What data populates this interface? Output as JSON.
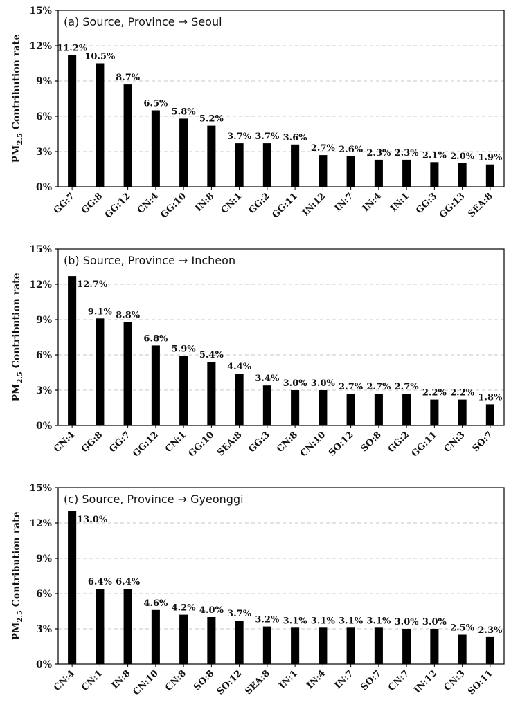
{
  "chart_data": [
    {
      "type": "bar",
      "title": "(a) Source, Province → Seoul",
      "ylabel": "PM₂.₅ Contribution rate",
      "ylabel_main": "PM",
      "ylabel_sub": "2.5",
      "ylabel_rest": " Contribution rate",
      "ylim": [
        0,
        15
      ],
      "yticks": [
        0,
        3,
        6,
        9,
        12,
        15
      ],
      "ytick_labels": [
        "0%",
        "3%",
        "6%",
        "9%",
        "12%",
        "15%"
      ],
      "grid": "horizontal dashed",
      "categories": [
        "GG:7",
        "GG:8",
        "GG:12",
        "CN:4",
        "GG:10",
        "IN:8",
        "CN:1",
        "GG:2",
        "GG:11",
        "IN:12",
        "IN:7",
        "IN:4",
        "IN:1",
        "GG:3",
        "GG:13",
        "SEA:8"
      ],
      "values": [
        11.2,
        10.5,
        8.7,
        6.5,
        5.8,
        5.2,
        3.7,
        3.7,
        3.6,
        2.7,
        2.6,
        2.3,
        2.3,
        2.1,
        2.0,
        1.9
      ],
      "data_labels": [
        "11.2%",
        "10.5%",
        "8.7%",
        "6.5%",
        "5.8%",
        "5.2%",
        "3.7%",
        "3.7%",
        "3.6%",
        "2.7%",
        "2.6%",
        "2.3%",
        "2.3%",
        "2.1%",
        "2.0%",
        "1.9%"
      ],
      "bar_color": "#000000"
    },
    {
      "type": "bar",
      "title": "(b) Source, Province → Incheon",
      "ylabel": "PM₂.₅ Contribution rate",
      "ylabel_main": "PM",
      "ylabel_sub": "2.5",
      "ylabel_rest": " Contribution rate",
      "ylim": [
        0,
        15
      ],
      "yticks": [
        0,
        3,
        6,
        9,
        12,
        15
      ],
      "ytick_labels": [
        "0%",
        "3%",
        "6%",
        "9%",
        "12%",
        "15%"
      ],
      "grid": "horizontal dashed",
      "categories": [
        "CN:4",
        "GG:8",
        "GG:7",
        "GG:12",
        "CN:1",
        "GG:10",
        "SEA:8",
        "GG:3",
        "CN:8",
        "CN:10",
        "SO:12",
        "SO:8",
        "GG:2",
        "GG:11",
        "CN:3",
        "SO:7"
      ],
      "values": [
        12.7,
        9.1,
        8.8,
        6.8,
        5.9,
        5.4,
        4.4,
        3.4,
        3.0,
        3.0,
        2.7,
        2.7,
        2.7,
        2.2,
        2.2,
        1.8
      ],
      "data_labels": [
        "12.7%",
        "9.1%",
        "8.8%",
        "6.8%",
        "5.9%",
        "5.4%",
        "4.4%",
        "3.4%",
        "3.0%",
        "3.0%",
        "2.7%",
        "2.7%",
        "2.7%",
        "2.2%",
        "2.2%",
        "1.8%"
      ],
      "bar_color": "#000000"
    },
    {
      "type": "bar",
      "title": "(c) Source, Province → Gyeonggi",
      "ylabel": "PM₂.₅ Contribution rate",
      "ylabel_main": "PM",
      "ylabel_sub": "2.5",
      "ylabel_rest": " Contribution rate",
      "ylim": [
        0,
        15
      ],
      "yticks": [
        0,
        3,
        6,
        9,
        12,
        15
      ],
      "ytick_labels": [
        "0%",
        "3%",
        "6%",
        "9%",
        "12%",
        "15%"
      ],
      "grid": "horizontal dashed",
      "categories": [
        "CN:4",
        "CN:1",
        "IN:8",
        "CN:10",
        "CN:8",
        "SO:8",
        "SO:12",
        "SEA:8",
        "IN:1",
        "IN:4",
        "IN:7",
        "SO:7",
        "CN:7",
        "IN:12",
        "CN:3",
        "SO:11"
      ],
      "values": [
        13.0,
        6.4,
        6.4,
        4.6,
        4.2,
        4.0,
        3.7,
        3.2,
        3.1,
        3.1,
        3.1,
        3.1,
        3.0,
        3.0,
        2.5,
        2.3
      ],
      "data_labels": [
        "13.0%",
        "6.4%",
        "6.4%",
        "4.6%",
        "4.2%",
        "4.0%",
        "3.7%",
        "3.2%",
        "3.1%",
        "3.1%",
        "3.1%",
        "3.1%",
        "3.0%",
        "3.0%",
        "2.5%",
        "2.3%"
      ],
      "bar_color": "#000000"
    }
  ]
}
